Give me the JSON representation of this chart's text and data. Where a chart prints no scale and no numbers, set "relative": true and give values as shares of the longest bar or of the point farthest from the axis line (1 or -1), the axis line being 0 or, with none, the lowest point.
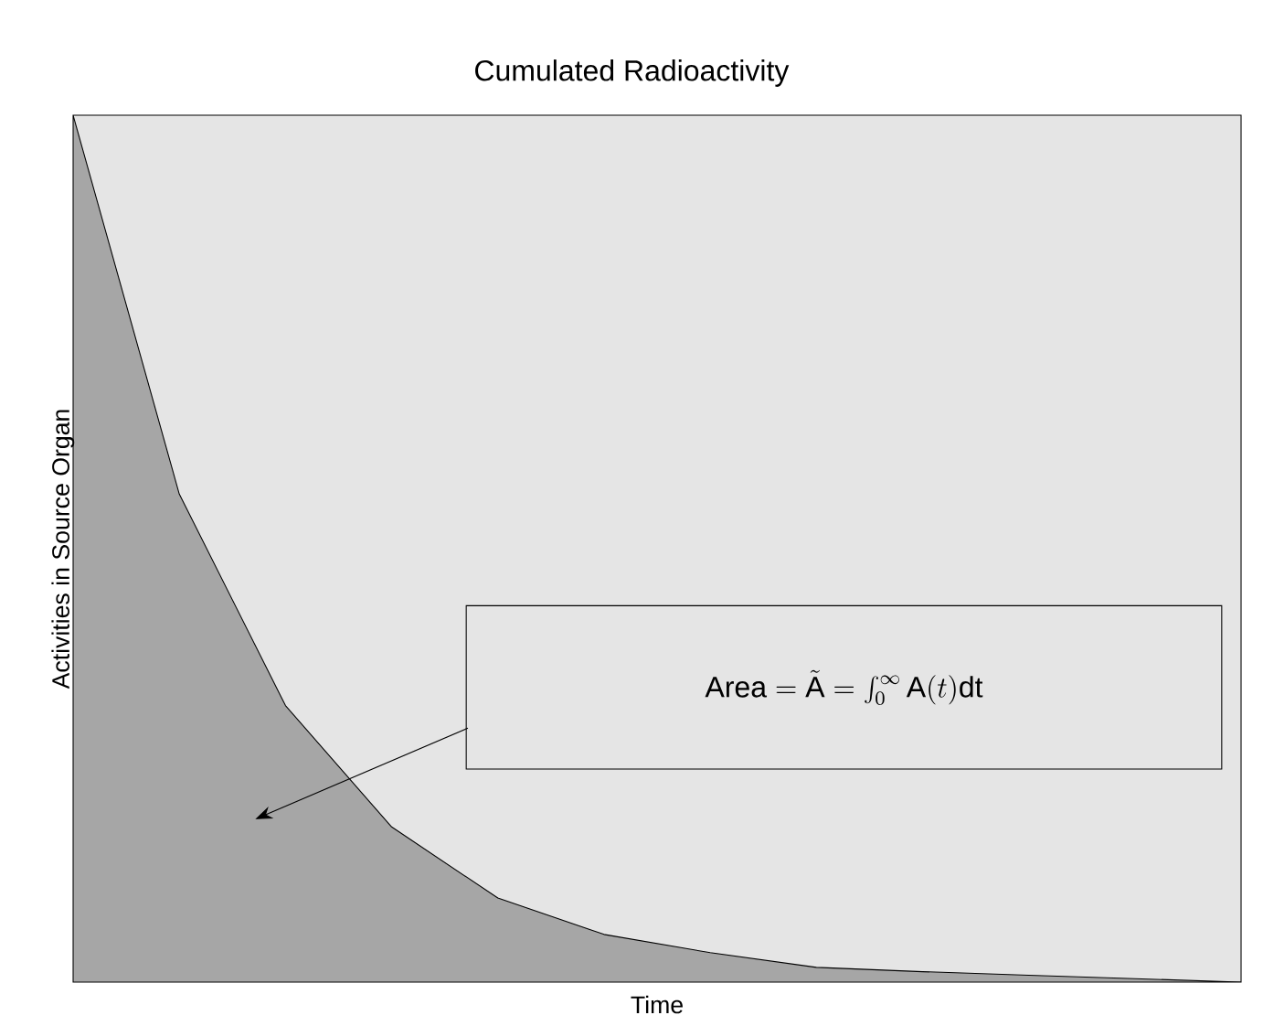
{
  "chart_data": {
    "type": "area",
    "title": "Cumulated Radioactivity",
    "xlabel": "Time",
    "ylabel": "Activities  in Source Organ",
    "relative": true,
    "categories": [
      null,
      null,
      null,
      null,
      null,
      null,
      null,
      null,
      null,
      null,
      null,
      null
    ],
    "series": [
      {
        "color": "#a6a6a6",
        "values": [
          1,
          0.563,
          0.319,
          0.179,
          0.097,
          0.055,
          0.034,
          0.017,
          0.012,
          0.008,
          0.004,
          0
        ]
      }
    ],
    "annotations": [
      "\\mathrm{Area} = \\tilde{\\mathrm{A}} = \\int_0^\\infty \\mathrm{A}(t)\\mathrm{dt}"
    ]
  }
}
